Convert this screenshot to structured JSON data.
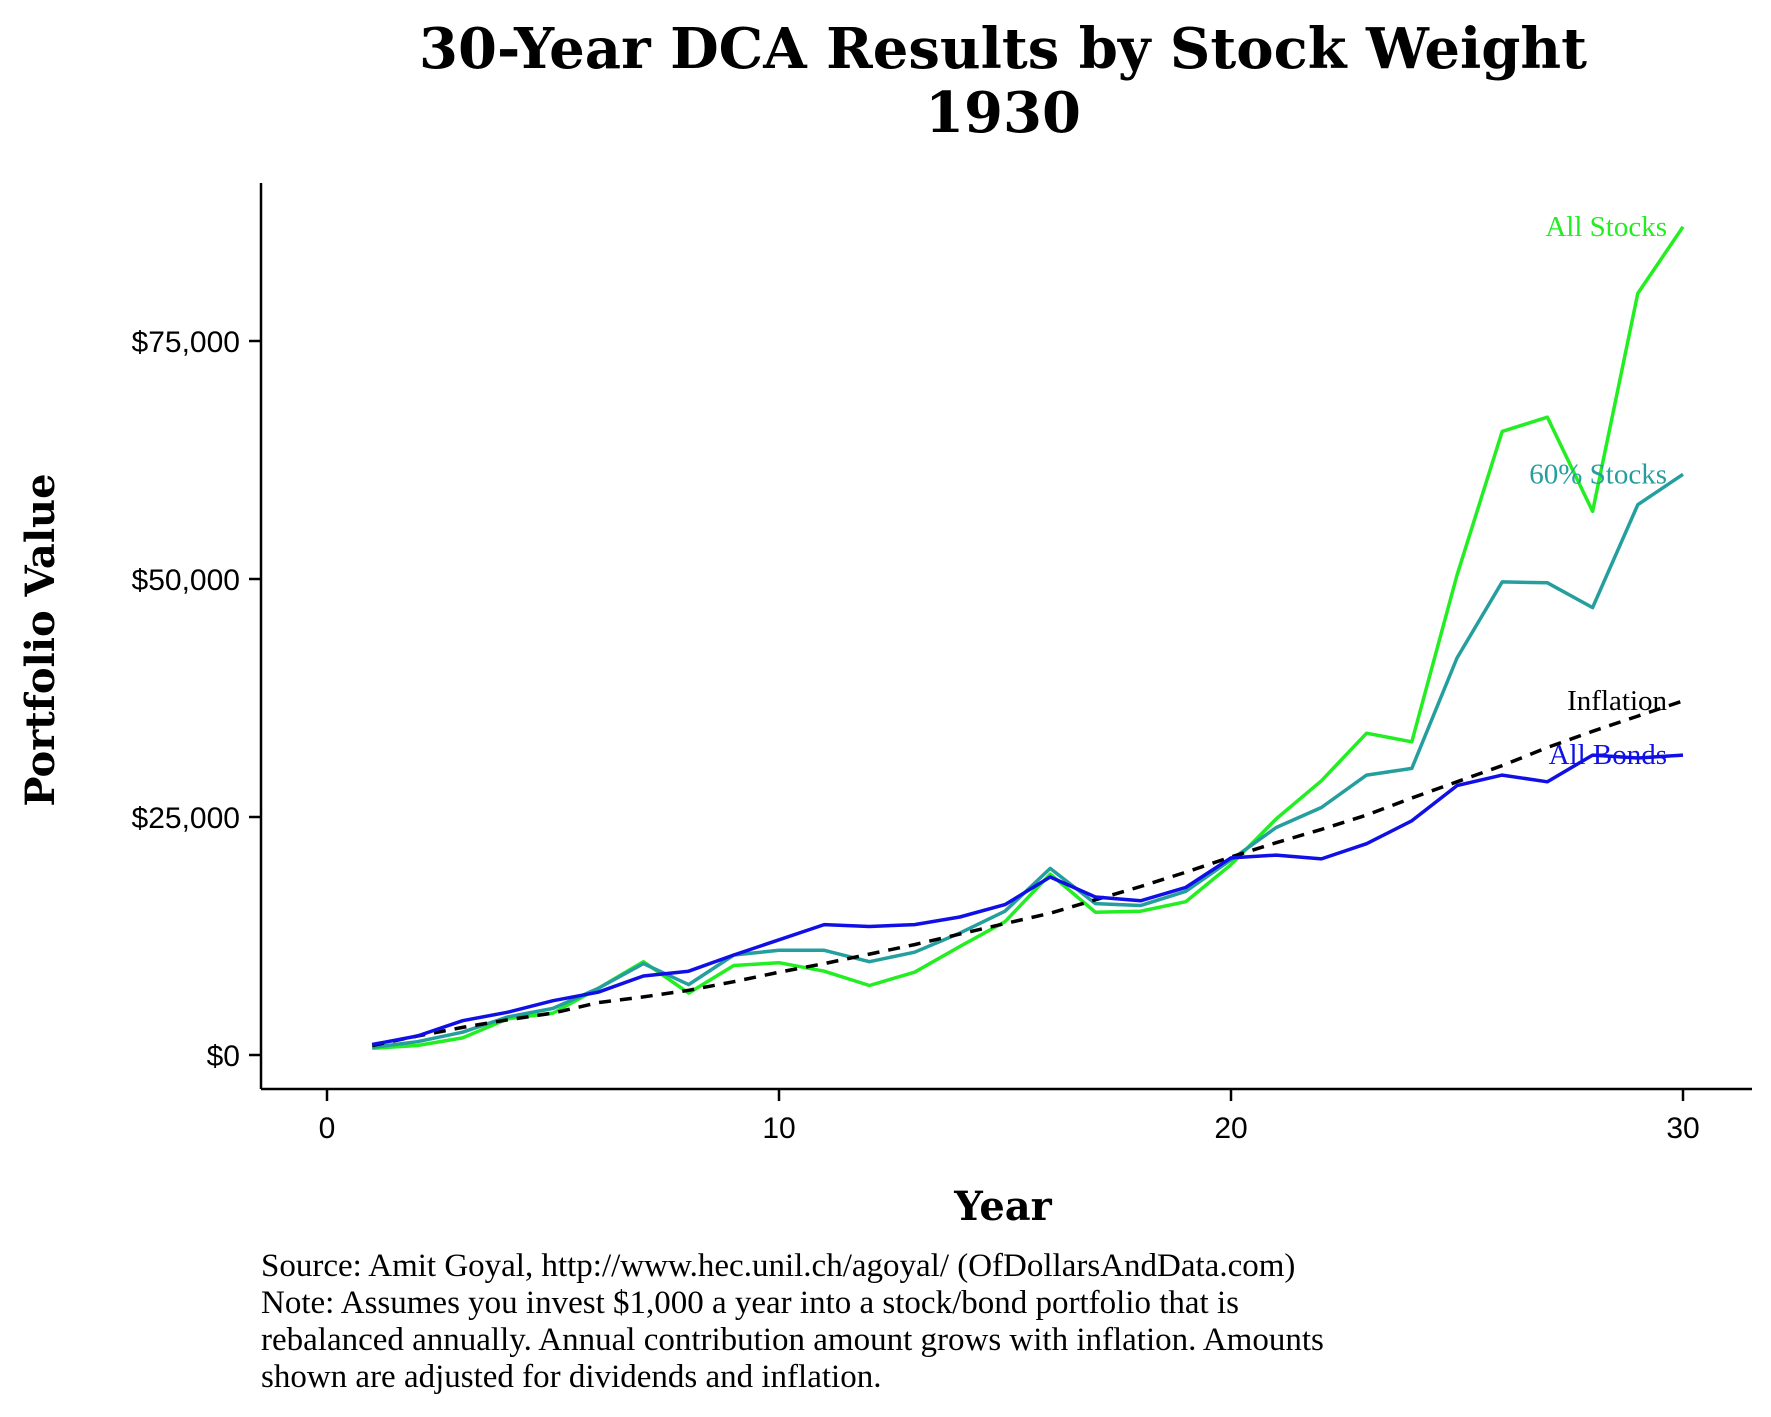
{
  "chart_data": {
    "type": "line",
    "title": "30-Year DCA Results by Stock Weight",
    "subtitle": "1930",
    "xlabel": "Year",
    "ylabel": "Portfolio Value",
    "xlim": [
      0,
      30
    ],
    "ylim": [
      0,
      90000
    ],
    "x_ticks": [
      0,
      10,
      20,
      30
    ],
    "y_ticks": [
      {
        "value": 0,
        "label": "$0"
      },
      {
        "value": 25000,
        "label": "$25,000"
      },
      {
        "value": 50000,
        "label": "$50,000"
      },
      {
        "value": 75000,
        "label": "$75,000"
      }
    ],
    "grid": false,
    "legend": "direct labels at line ends",
    "x": [
      1,
      2,
      3,
      4,
      5,
      6,
      7,
      8,
      9,
      10,
      11,
      12,
      13,
      14,
      15,
      16,
      17,
      18,
      19,
      20,
      21,
      22,
      23,
      24,
      25,
      26,
      27,
      28,
      29,
      30
    ],
    "series": [
      {
        "name": "All Stocks",
        "color": "#22ee22",
        "dashed": false,
        "values": [
          700,
          1000,
          1800,
          3800,
          4400,
          7000,
          9800,
          6500,
          9400,
          9700,
          8800,
          7300,
          8700,
          11400,
          14000,
          19000,
          15000,
          15100,
          16100,
          20000,
          24800,
          28800,
          33800,
          32900,
          50400,
          65500,
          67000,
          57100,
          80000,
          87000
        ]
      },
      {
        "name": "60% Stocks",
        "color": "#259e9e",
        "dashed": false,
        "values": [
          800,
          1400,
          2400,
          4000,
          4900,
          7000,
          9600,
          7400,
          10500,
          11000,
          11000,
          9800,
          10800,
          12800,
          15100,
          19600,
          15900,
          15700,
          17200,
          20500,
          23900,
          26000,
          29400,
          30100,
          41700,
          49700,
          49600,
          47000,
          57800,
          61000
        ]
      },
      {
        "name": "Inflation",
        "color": "#000000",
        "dashed": true,
        "values": [
          1000,
          2000,
          2900,
          3700,
          4400,
          5500,
          6100,
          6800,
          7700,
          8700,
          9600,
          10600,
          11600,
          12700,
          13800,
          14900,
          16300,
          17700,
          19200,
          20800,
          22300,
          23700,
          25200,
          27000,
          28700,
          30400,
          32300,
          34000,
          35600,
          37200
        ]
      },
      {
        "name": "All Bonds",
        "color": "#1010e6",
        "dashed": false,
        "values": [
          1100,
          2000,
          3600,
          4500,
          5700,
          6600,
          8300,
          8800,
          10500,
          12100,
          13700,
          13500,
          13700,
          14500,
          15800,
          18700,
          16600,
          16200,
          17600,
          20700,
          21000,
          20600,
          22200,
          24600,
          28300,
          29400,
          28700,
          31500,
          31200,
          31500
        ]
      }
    ],
    "notes": [
      "Source: Amit Goyal, http://www.hec.unil.ch/agoyal/ (OfDollarsAndData.com)",
      "Note: Assumes you invest $1,000 a year into a stock/bond portfolio that is",
      "rebalanced annually. Annual contribution amount grows with inflation. Amounts",
      "shown are adjusted for dividends and inflation."
    ]
  }
}
